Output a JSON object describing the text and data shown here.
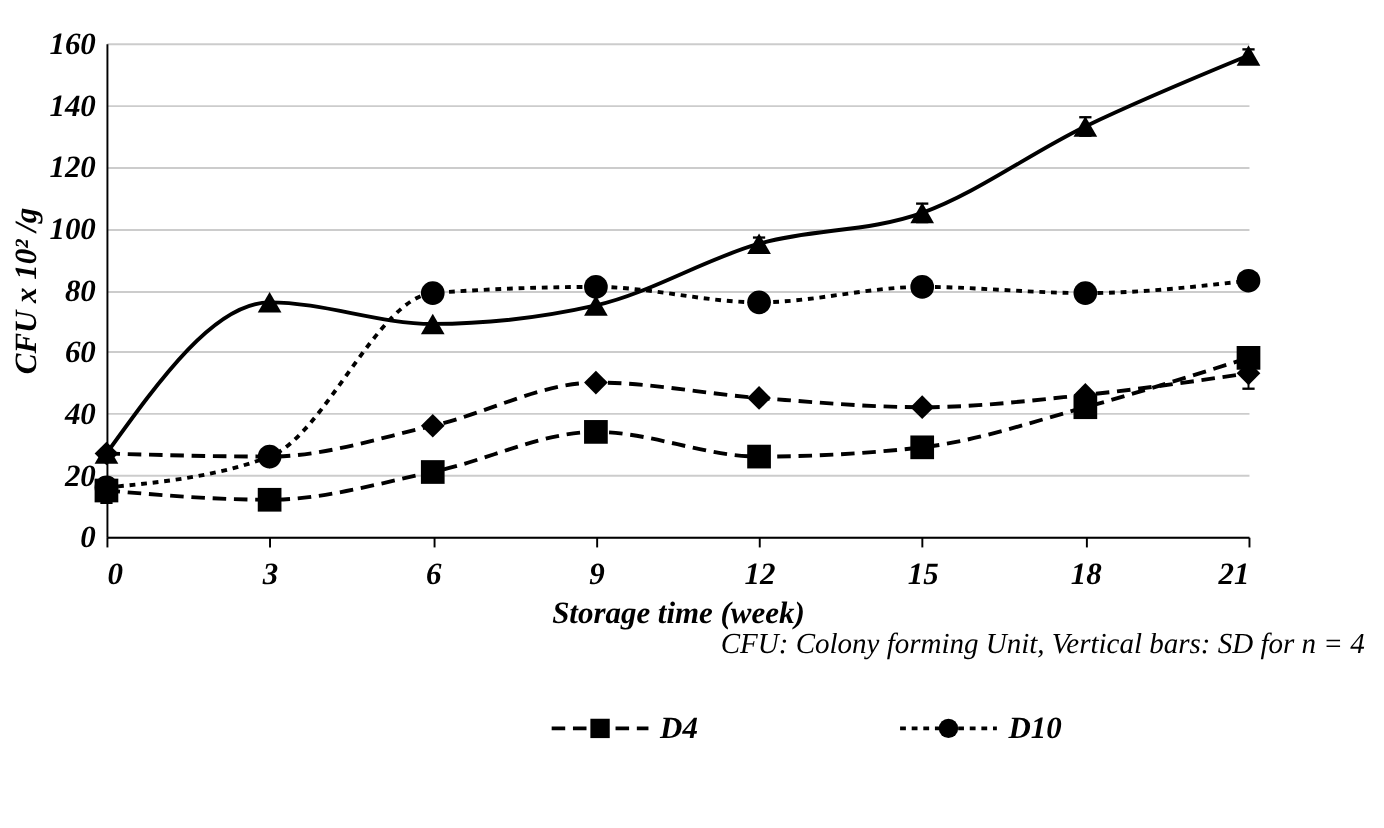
{
  "chart_data": {
    "type": "line",
    "xlabel": "Storage time (week)",
    "ylabel": "CFU x 10² /g",
    "annotations": [
      "CFU: Colony forming Unit, Vertical bars: SD for n = 4"
    ],
    "x": [
      0,
      3,
      6,
      9,
      12,
      15,
      18,
      21
    ],
    "xlim": [
      0,
      21
    ],
    "xticks": [
      0,
      3,
      6,
      9,
      12,
      15,
      18,
      21
    ],
    "ylim": [
      0,
      160
    ],
    "yticks": [
      0,
      20,
      40,
      60,
      80,
      100,
      120,
      140,
      160
    ],
    "grid": "y",
    "legend": "bottom",
    "series": [
      {
        "name": "D4",
        "color": "#000000",
        "marker": "square",
        "line_style": "dashed",
        "values": [
          15,
          12,
          21,
          34,
          26,
          29,
          42,
          58
        ],
        "errors": [
          4,
          null,
          null,
          null,
          null,
          null,
          null,
          null
        ]
      },
      {
        "name": "D10",
        "color": "#000000",
        "marker": "circle",
        "line_style": "dotted",
        "values": [
          16,
          26,
          79,
          81,
          76,
          81,
          79,
          83
        ]
      },
      {
        "color": "#000000",
        "marker": "diamond",
        "line_style": "dashed",
        "values": [
          27,
          26,
          36,
          50,
          45,
          42,
          46,
          53
        ],
        "errors": [
          null,
          null,
          null,
          null,
          null,
          null,
          null,
          5
        ]
      },
      {
        "color": "#000000",
        "marker": "triangle",
        "line_style": "solid",
        "values": [
          27,
          76,
          69,
          75,
          95,
          105,
          133,
          156
        ],
        "errors": [
          null,
          null,
          null,
          null,
          2,
          3,
          3,
          2
        ]
      }
    ]
  }
}
